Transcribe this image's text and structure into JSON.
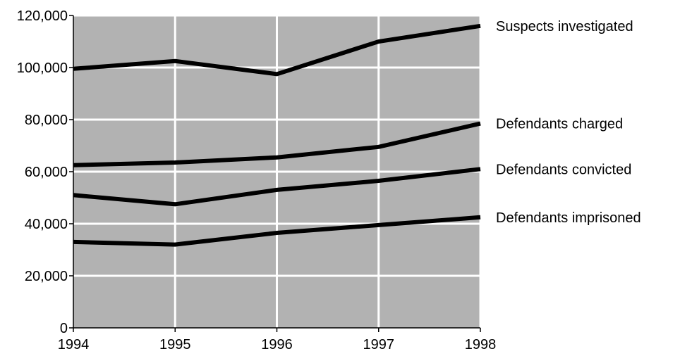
{
  "chart_data": {
    "type": "line",
    "title": "",
    "xlabel": "",
    "ylabel": "",
    "x": [
      1994,
      1995,
      1996,
      1997,
      1998
    ],
    "x_tick_labels": [
      "1994",
      "1995",
      "1996",
      "1997",
      "1998"
    ],
    "y_tick_labels": [
      "0",
      "20,000",
      "40,000",
      "60,000",
      "80,000",
      "100,000",
      "120,000"
    ],
    "y_ticks": [
      0,
      20000,
      40000,
      60000,
      80000,
      100000,
      120000
    ],
    "ylim": [
      0,
      120000
    ],
    "xlim": [
      1994,
      1998
    ],
    "grid": true,
    "legend": "series labels at right end of lines",
    "colors": {
      "plot_background": "#b2b2b2",
      "grid": "#ffffff",
      "line": "#000000",
      "axis": "#000000"
    },
    "series": [
      {
        "name": "Suspects investigated",
        "values": [
          99500,
          102500,
          97500,
          110000,
          116000
        ]
      },
      {
        "name": "Defendants charged",
        "values": [
          62500,
          63500,
          65500,
          69500,
          78500
        ]
      },
      {
        "name": "Defendants convicted",
        "values": [
          51000,
          47500,
          53000,
          56500,
          61000
        ]
      },
      {
        "name": "Defendants imprisoned",
        "values": [
          33000,
          32000,
          36500,
          39500,
          42500
        ]
      }
    ]
  }
}
